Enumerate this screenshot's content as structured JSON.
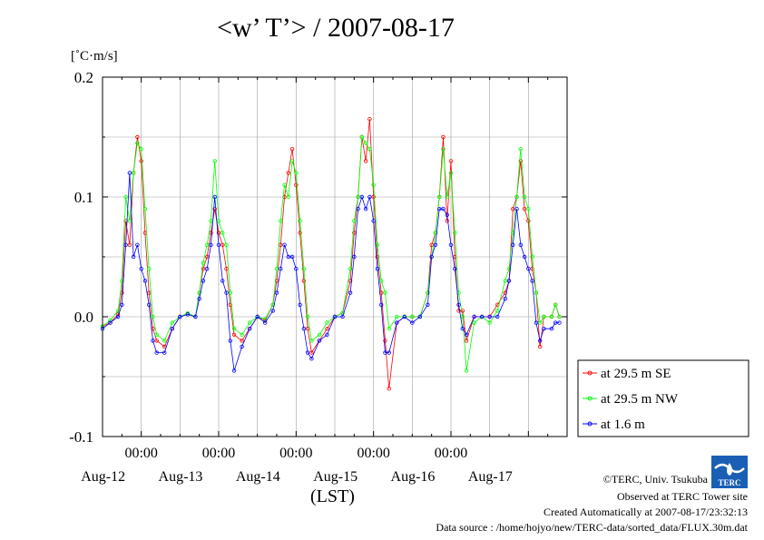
{
  "title": "<w’ T’> / 2007-08-17",
  "unit_label": "[˚C·m/s]",
  "footer": {
    "copyright": "©TERC, Univ. Tsukuba",
    "observed": "Observed at TERC Tower site",
    "created": "Created Automatically at 2007-08-17/23:32:13",
    "source": "Data source : /home/hojyo/new/TERC-data/sorted_data/FLUX.30m.dat"
  },
  "logo": {
    "text": "TERC",
    "color": "#1a5fb4"
  },
  "chart_data": {
    "type": "line",
    "title": "<w’ T’> / 2007-08-17",
    "ylabel": "[˚C·m/s]",
    "xlabel": "(LST)",
    "ylim": [
      -0.1,
      0.2
    ],
    "xlim": [
      0,
      6
    ],
    "x_unit": "days since 2007-08-11 12:00 LST",
    "yticks": [
      -0.1,
      0.0,
      0.1,
      0.2
    ],
    "ytick_labels": [
      "-0.1",
      "0.0",
      "0.1",
      "0.2"
    ],
    "time_ticks": [
      "00:00",
      "00:00",
      "00:00",
      "00:00",
      "00:00"
    ],
    "date_labels": [
      "Aug-12",
      "Aug-13",
      "Aug-14",
      "Aug-15",
      "Aug-16",
      "Aug-17"
    ],
    "grid": true,
    "legend_position": "right",
    "series": [
      {
        "name": "at 29.5 m SE",
        "color": "#ff0000",
        "points": [
          [
            0.0,
            -0.008
          ],
          [
            0.1,
            -0.005
          ],
          [
            0.2,
            0.002
          ],
          [
            0.25,
            0.02
          ],
          [
            0.3,
            0.08
          ],
          [
            0.35,
            0.06
          ],
          [
            0.4,
            0.12
          ],
          [
            0.45,
            0.15
          ],
          [
            0.5,
            0.13
          ],
          [
            0.55,
            0.07
          ],
          [
            0.6,
            0.02
          ],
          [
            0.65,
            -0.01
          ],
          [
            0.7,
            -0.02
          ],
          [
            0.8,
            -0.025
          ],
          [
            0.9,
            -0.01
          ],
          [
            1.0,
            0.0
          ],
          [
            1.1,
            0.002
          ],
          [
            1.2,
            0.0
          ],
          [
            1.25,
            0.02
          ],
          [
            1.3,
            0.04
          ],
          [
            1.35,
            0.05
          ],
          [
            1.4,
            0.07
          ],
          [
            1.45,
            0.09
          ],
          [
            1.5,
            0.07
          ],
          [
            1.55,
            0.06
          ],
          [
            1.6,
            0.04
          ],
          [
            1.65,
            0.01
          ],
          [
            1.7,
            -0.015
          ],
          [
            1.8,
            -0.02
          ],
          [
            1.9,
            -0.01
          ],
          [
            2.0,
            0.0
          ],
          [
            2.1,
            -0.003
          ],
          [
            2.2,
            0.01
          ],
          [
            2.25,
            0.03
          ],
          [
            2.3,
            0.06
          ],
          [
            2.35,
            0.1
          ],
          [
            2.4,
            0.12
          ],
          [
            2.45,
            0.14
          ],
          [
            2.5,
            0.11
          ],
          [
            2.55,
            0.07
          ],
          [
            2.6,
            0.03
          ],
          [
            2.65,
            -0.01
          ],
          [
            2.7,
            -0.03
          ],
          [
            2.8,
            -0.02
          ],
          [
            2.9,
            -0.01
          ],
          [
            3.0,
            0.0
          ],
          [
            3.1,
            0.003
          ],
          [
            3.2,
            0.03
          ],
          [
            3.25,
            0.07
          ],
          [
            3.3,
            0.1
          ],
          [
            3.35,
            0.15
          ],
          [
            3.4,
            0.13
          ],
          [
            3.45,
            0.165
          ],
          [
            3.5,
            0.1
          ],
          [
            3.55,
            0.05
          ],
          [
            3.6,
            0.02
          ],
          [
            3.65,
            -0.02
          ],
          [
            3.7,
            -0.06
          ],
          [
            3.8,
            -0.005
          ],
          [
            3.9,
            0.0
          ],
          [
            4.0,
            0.0
          ],
          [
            4.1,
            0.0
          ],
          [
            4.2,
            0.02
          ],
          [
            4.25,
            0.06
          ],
          [
            4.3,
            0.07
          ],
          [
            4.35,
            0.1
          ],
          [
            4.4,
            0.15
          ],
          [
            4.45,
            0.08
          ],
          [
            4.5,
            0.13
          ],
          [
            4.55,
            0.05
          ],
          [
            4.6,
            0.005
          ],
          [
            4.65,
            0.005
          ],
          [
            4.7,
            -0.02
          ],
          [
            4.8,
            0.0
          ],
          [
            4.9,
            0.0
          ],
          [
            5.0,
            0.0
          ],
          [
            5.1,
            0.01
          ],
          [
            5.2,
            0.02
          ],
          [
            5.25,
            0.03
          ],
          [
            5.3,
            0.09
          ],
          [
            5.35,
            0.1
          ],
          [
            5.4,
            0.13
          ],
          [
            5.45,
            0.09
          ],
          [
            5.5,
            0.08
          ],
          [
            5.55,
            0.04
          ],
          [
            5.6,
            0.02
          ],
          [
            5.65,
            -0.025
          ],
          [
            5.7,
            0.0
          ],
          [
            5.8,
            0.0
          ],
          [
            5.85,
            0.01
          ],
          [
            5.9,
            0.0
          ]
        ]
      },
      {
        "name": "at 29.5 m NW",
        "color": "#00ff00",
        "points": [
          [
            0.0,
            -0.008
          ],
          [
            0.1,
            -0.003
          ],
          [
            0.2,
            0.005
          ],
          [
            0.25,
            0.03
          ],
          [
            0.3,
            0.1
          ],
          [
            0.35,
            0.08
          ],
          [
            0.4,
            0.12
          ],
          [
            0.45,
            0.145
          ],
          [
            0.5,
            0.14
          ],
          [
            0.55,
            0.09
          ],
          [
            0.6,
            0.04
          ],
          [
            0.65,
            0.0
          ],
          [
            0.7,
            -0.015
          ],
          [
            0.8,
            -0.02
          ],
          [
            0.9,
            -0.005
          ],
          [
            1.0,
            0.0
          ],
          [
            1.1,
            0.003
          ],
          [
            1.2,
            0.0
          ],
          [
            1.25,
            0.02
          ],
          [
            1.3,
            0.045
          ],
          [
            1.35,
            0.06
          ],
          [
            1.4,
            0.08
          ],
          [
            1.45,
            0.13
          ],
          [
            1.5,
            0.08
          ],
          [
            1.55,
            0.07
          ],
          [
            1.6,
            0.06
          ],
          [
            1.65,
            0.02
          ],
          [
            1.7,
            -0.01
          ],
          [
            1.8,
            -0.015
          ],
          [
            1.9,
            -0.005
          ],
          [
            2.0,
            0.0
          ],
          [
            2.1,
            -0.002
          ],
          [
            2.2,
            0.01
          ],
          [
            2.25,
            0.04
          ],
          [
            2.3,
            0.08
          ],
          [
            2.35,
            0.11
          ],
          [
            2.4,
            0.1
          ],
          [
            2.45,
            0.13
          ],
          [
            2.5,
            0.12
          ],
          [
            2.55,
            0.08
          ],
          [
            2.6,
            0.04
          ],
          [
            2.65,
            0.0
          ],
          [
            2.7,
            -0.02
          ],
          [
            2.8,
            -0.015
          ],
          [
            2.9,
            -0.005
          ],
          [
            3.0,
            0.0
          ],
          [
            3.1,
            0.003
          ],
          [
            3.2,
            0.04
          ],
          [
            3.25,
            0.08
          ],
          [
            3.3,
            0.1
          ],
          [
            3.35,
            0.15
          ],
          [
            3.4,
            0.145
          ],
          [
            3.45,
            0.14
          ],
          [
            3.5,
            0.11
          ],
          [
            3.55,
            0.06
          ],
          [
            3.6,
            0.03
          ],
          [
            3.65,
            0.02
          ],
          [
            3.7,
            -0.01
          ],
          [
            3.8,
            0.0
          ],
          [
            3.9,
            0.0
          ],
          [
            4.0,
            0.0
          ],
          [
            4.1,
            0.0
          ],
          [
            4.2,
            0.02
          ],
          [
            4.25,
            0.05
          ],
          [
            4.3,
            0.07
          ],
          [
            4.35,
            0.1
          ],
          [
            4.4,
            0.14
          ],
          [
            4.45,
            0.1
          ],
          [
            4.5,
            0.12
          ],
          [
            4.55,
            0.07
          ],
          [
            4.6,
            0.02
          ],
          [
            4.65,
            0.0
          ],
          [
            4.7,
            -0.045
          ],
          [
            4.8,
            -0.005
          ],
          [
            4.9,
            0.0
          ],
          [
            5.0,
            -0.005
          ],
          [
            5.1,
            0.005
          ],
          [
            5.2,
            0.03
          ],
          [
            5.25,
            0.04
          ],
          [
            5.3,
            0.07
          ],
          [
            5.35,
            0.1
          ],
          [
            5.4,
            0.14
          ],
          [
            5.45,
            0.1
          ],
          [
            5.5,
            0.09
          ],
          [
            5.55,
            0.05
          ],
          [
            5.6,
            0.02
          ],
          [
            5.65,
            -0.005
          ],
          [
            5.7,
            0.0
          ],
          [
            5.8,
            0.0
          ],
          [
            5.85,
            0.01
          ],
          [
            5.9,
            0.0
          ]
        ]
      },
      {
        "name": "at 1.6 m",
        "color": "#0000ff",
        "points": [
          [
            0.0,
            -0.01
          ],
          [
            0.1,
            -0.005
          ],
          [
            0.2,
            0.0
          ],
          [
            0.25,
            0.01
          ],
          [
            0.3,
            0.06
          ],
          [
            0.35,
            0.12
          ],
          [
            0.4,
            0.05
          ],
          [
            0.45,
            0.06
          ],
          [
            0.5,
            0.04
          ],
          [
            0.55,
            0.03
          ],
          [
            0.6,
            0.01
          ],
          [
            0.65,
            -0.02
          ],
          [
            0.7,
            -0.03
          ],
          [
            0.8,
            -0.03
          ],
          [
            0.9,
            -0.01
          ],
          [
            1.0,
            0.0
          ],
          [
            1.1,
            0.002
          ],
          [
            1.2,
            0.0
          ],
          [
            1.25,
            0.015
          ],
          [
            1.3,
            0.03
          ],
          [
            1.35,
            0.04
          ],
          [
            1.4,
            0.06
          ],
          [
            1.45,
            0.1
          ],
          [
            1.5,
            0.06
          ],
          [
            1.55,
            0.03
          ],
          [
            1.6,
            0.02
          ],
          [
            1.65,
            -0.02
          ],
          [
            1.7,
            -0.045
          ],
          [
            1.8,
            -0.025
          ],
          [
            1.9,
            -0.01
          ],
          [
            2.0,
            0.0
          ],
          [
            2.1,
            -0.005
          ],
          [
            2.2,
            0.005
          ],
          [
            2.25,
            0.02
          ],
          [
            2.3,
            0.04
          ],
          [
            2.35,
            0.06
          ],
          [
            2.4,
            0.05
          ],
          [
            2.45,
            0.05
          ],
          [
            2.5,
            0.04
          ],
          [
            2.55,
            0.01
          ],
          [
            2.6,
            -0.01
          ],
          [
            2.65,
            -0.03
          ],
          [
            2.7,
            -0.035
          ],
          [
            2.8,
            -0.02
          ],
          [
            2.9,
            -0.015
          ],
          [
            3.0,
            0.0
          ],
          [
            3.1,
            0.0
          ],
          [
            3.2,
            0.02
          ],
          [
            3.25,
            0.05
          ],
          [
            3.3,
            0.09
          ],
          [
            3.35,
            0.1
          ],
          [
            3.4,
            0.09
          ],
          [
            3.45,
            0.1
          ],
          [
            3.5,
            0.08
          ],
          [
            3.55,
            0.04
          ],
          [
            3.6,
            0.01
          ],
          [
            3.65,
            -0.03
          ],
          [
            3.7,
            -0.03
          ],
          [
            3.8,
            -0.005
          ],
          [
            3.9,
            0.0
          ],
          [
            4.0,
            -0.005
          ],
          [
            4.1,
            0.0
          ],
          [
            4.2,
            0.01
          ],
          [
            4.25,
            0.05
          ],
          [
            4.3,
            0.06
          ],
          [
            4.35,
            0.09
          ],
          [
            4.4,
            0.09
          ],
          [
            4.45,
            0.085
          ],
          [
            4.5,
            0.06
          ],
          [
            4.55,
            0.04
          ],
          [
            4.6,
            0.01
          ],
          [
            4.65,
            -0.01
          ],
          [
            4.7,
            -0.015
          ],
          [
            4.8,
            0.0
          ],
          [
            4.9,
            0.0
          ],
          [
            5.0,
            0.0
          ],
          [
            5.1,
            0.0
          ],
          [
            5.2,
            0.015
          ],
          [
            5.25,
            0.03
          ],
          [
            5.3,
            0.06
          ],
          [
            5.35,
            0.09
          ],
          [
            5.4,
            0.06
          ],
          [
            5.45,
            0.05
          ],
          [
            5.5,
            0.04
          ],
          [
            5.55,
            0.03
          ],
          [
            5.6,
            -0.005
          ],
          [
            5.65,
            -0.02
          ],
          [
            5.7,
            -0.01
          ],
          [
            5.8,
            -0.01
          ],
          [
            5.85,
            -0.005
          ],
          [
            5.9,
            -0.005
          ]
        ]
      }
    ]
  }
}
